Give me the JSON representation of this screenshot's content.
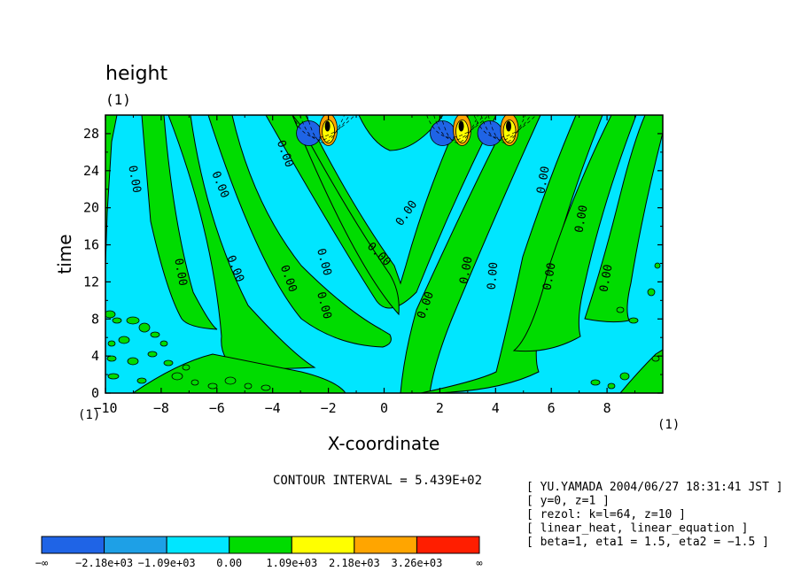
{
  "chart_data": {
    "type": "heatmap",
    "title": "height",
    "title_unit": "(1)",
    "xlabel": "X-coordinate",
    "x_unit": "(1)",
    "x_origin_unit": "(1)",
    "ylabel": "time",
    "xlim": [
      -10,
      10
    ],
    "ylim": [
      0,
      30
    ],
    "x_ticks": [
      -10,
      -8,
      -6,
      -4,
      -2,
      0,
      2,
      4,
      6,
      8
    ],
    "y_ticks": [
      0,
      4,
      8,
      12,
      16,
      20,
      24,
      28
    ],
    "contour_line_label": "0.00",
    "contour_interval_label": "CONTOUR INTERVAL = 5.439E+02",
    "legend": {
      "boundaries": [
        "−∞",
        "−2.18e+03",
        "−1.09e+03",
        "0.00",
        "1.09e+03",
        "2.18e+03",
        "3.26e+03",
        "∞"
      ],
      "colors": [
        "#1f64e6",
        "#1ea0e6",
        "#00e6ff",
        "#00dc00",
        "#ffff00",
        "#ffa500",
        "#ff1e00"
      ]
    },
    "bands": {
      "cyan": "#00e6ff",
      "green": "#00dc00"
    },
    "peaks": [
      {
        "x": -2.0,
        "t": 29.0
      },
      {
        "x": 2.8,
        "t": 29.0
      },
      {
        "x": 4.5,
        "t": 29.0
      }
    ]
  },
  "info": [
    "[ YU.YAMADA 2004/06/27 18:31:41 JST ]",
    "[ y=0, z=1 ]",
    "[ rezol: k=l=64, z=10 ]",
    "[ linear_heat, linear_equation ]",
    "[ beta=1, eta1 = 1.5, eta2 = −1.5 ]"
  ]
}
